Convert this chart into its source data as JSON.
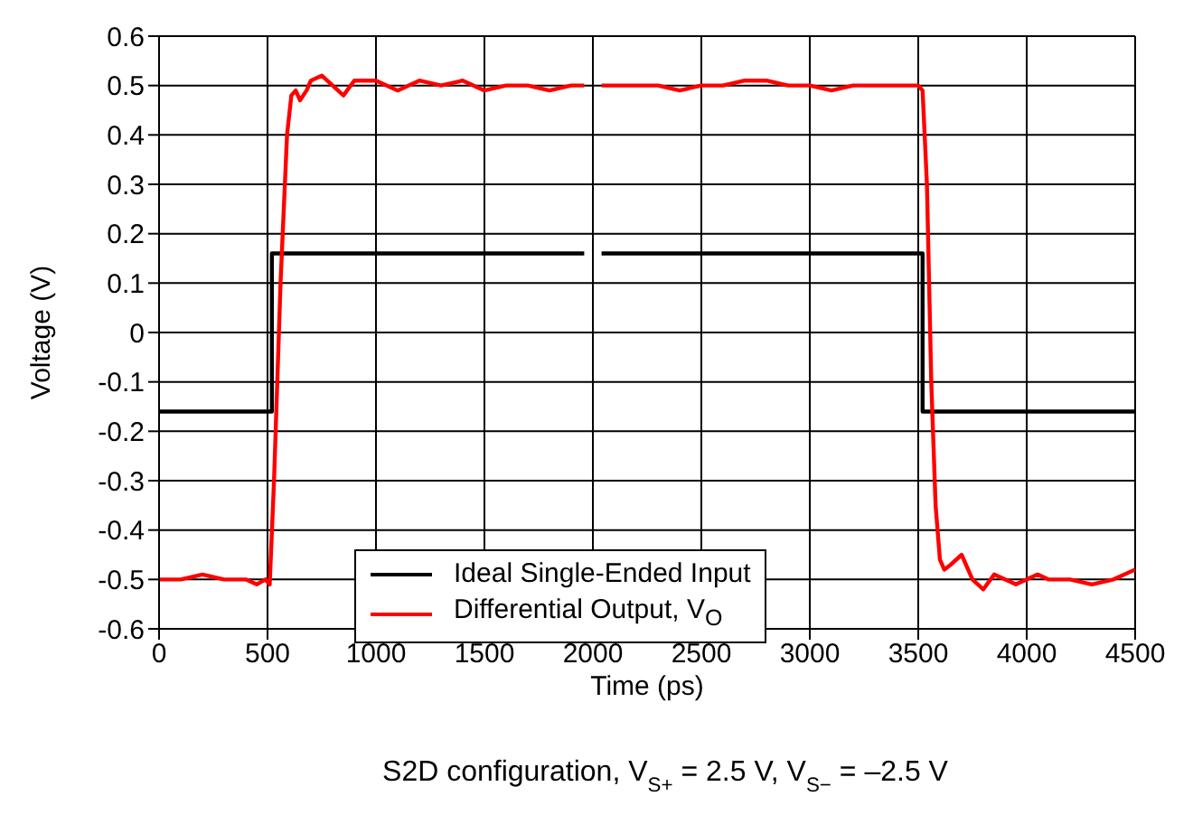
{
  "chart_data": {
    "type": "line",
    "xlabel": "Time (ps)",
    "ylabel": "Voltage (V)",
    "annotations": [
      "S2D configuration, V$_{S+}$ = 2.5 V, V$_{S−}$ = –2.5 V"
    ],
    "xlim": [
      0,
      4500
    ],
    "xticks": [
      0,
      500,
      1000,
      1500,
      2000,
      2500,
      3000,
      3500,
      4000,
      4500
    ],
    "ylim": [
      -0.6,
      0.6
    ],
    "yticks": [
      -0.6,
      -0.5,
      -0.4,
      -0.3,
      -0.2,
      -0.1,
      0,
      0.1,
      0.2,
      0.3,
      0.4,
      0.5,
      0.6
    ],
    "grid": true,
    "legend": "bottom",
    "marker": "none",
    "line_style": "solid",
    "series": [
      {
        "name": "Ideal Single-Ended Input",
        "type": "step",
        "color": "#000000",
        "x": [
          0,
          520,
          1960,
          2000,
          2040,
          3520,
          4500
        ],
        "values": [
          -0.16,
          0.16,
          0.16,
          null,
          0.16,
          -0.16,
          -0.16
        ]
      },
      {
        "name": "Differential Output, V$_{O}$",
        "color": "#ff0000",
        "x": [
          0,
          100,
          200,
          300,
          400,
          450,
          490,
          510,
          530,
          560,
          590,
          610,
          630,
          650,
          680,
          700,
          750,
          800,
          850,
          900,
          1000,
          1100,
          1200,
          1300,
          1400,
          1500,
          1600,
          1700,
          1800,
          1900,
          1960,
          2000,
          2040,
          2100,
          2200,
          2300,
          2400,
          2500,
          2600,
          2700,
          2800,
          2900,
          3000,
          3100,
          3200,
          3300,
          3400,
          3480,
          3500,
          3520,
          3540,
          3560,
          3580,
          3600,
          3620,
          3650,
          3700,
          3750,
          3800,
          3850,
          3900,
          3950,
          4000,
          4050,
          4100,
          4200,
          4300,
          4400,
          4500
        ],
        "values": [
          -0.5,
          -0.5,
          -0.49,
          -0.5,
          -0.5,
          -0.51,
          -0.5,
          -0.51,
          -0.3,
          0.1,
          0.4,
          0.48,
          0.49,
          0.47,
          0.49,
          0.51,
          0.52,
          0.5,
          0.48,
          0.51,
          0.51,
          0.49,
          0.51,
          0.5,
          0.51,
          0.49,
          0.5,
          0.5,
          0.49,
          0.5,
          0.5,
          null,
          0.5,
          0.5,
          0.5,
          0.5,
          0.49,
          0.5,
          0.5,
          0.51,
          0.51,
          0.5,
          0.5,
          0.49,
          0.5,
          0.5,
          0.5,
          0.5,
          0.5,
          0.49,
          0.3,
          -0.1,
          -0.35,
          -0.46,
          -0.48,
          -0.47,
          -0.45,
          -0.5,
          -0.52,
          -0.49,
          -0.5,
          -0.51,
          -0.5,
          -0.49,
          -0.5,
          -0.5,
          -0.51,
          -0.5,
          -0.48
        ]
      }
    ]
  }
}
